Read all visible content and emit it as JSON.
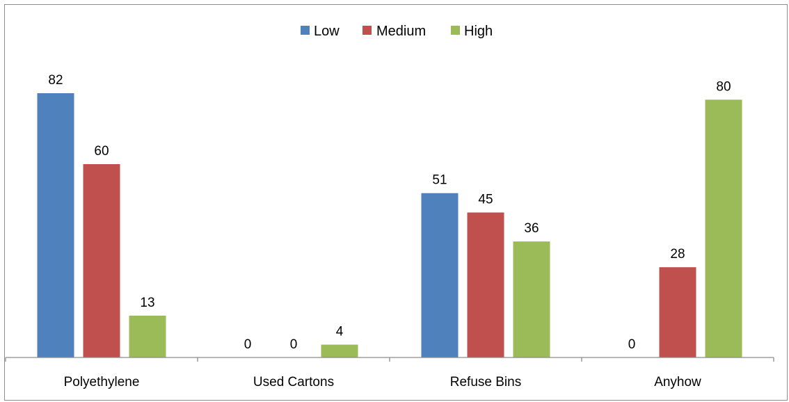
{
  "chart_data": {
    "type": "bar",
    "categories": [
      "Polyethylene",
      "Used Cartons",
      "Refuse Bins",
      "Anyhow"
    ],
    "series": [
      {
        "name": "Low",
        "color": "#4f81bd",
        "values": [
          82,
          0,
          51,
          0
        ]
      },
      {
        "name": "Medium",
        "color": "#c0504d",
        "values": [
          60,
          0,
          45,
          28
        ]
      },
      {
        "name": "High",
        "color": "#9bbb59",
        "values": [
          13,
          4,
          36,
          80
        ]
      }
    ],
    "title": "",
    "xlabel": "",
    "ylabel": "",
    "ylim": [
      0,
      82
    ],
    "grid": false,
    "legend": "top-center",
    "axis_color": "#8c8c8c"
  }
}
